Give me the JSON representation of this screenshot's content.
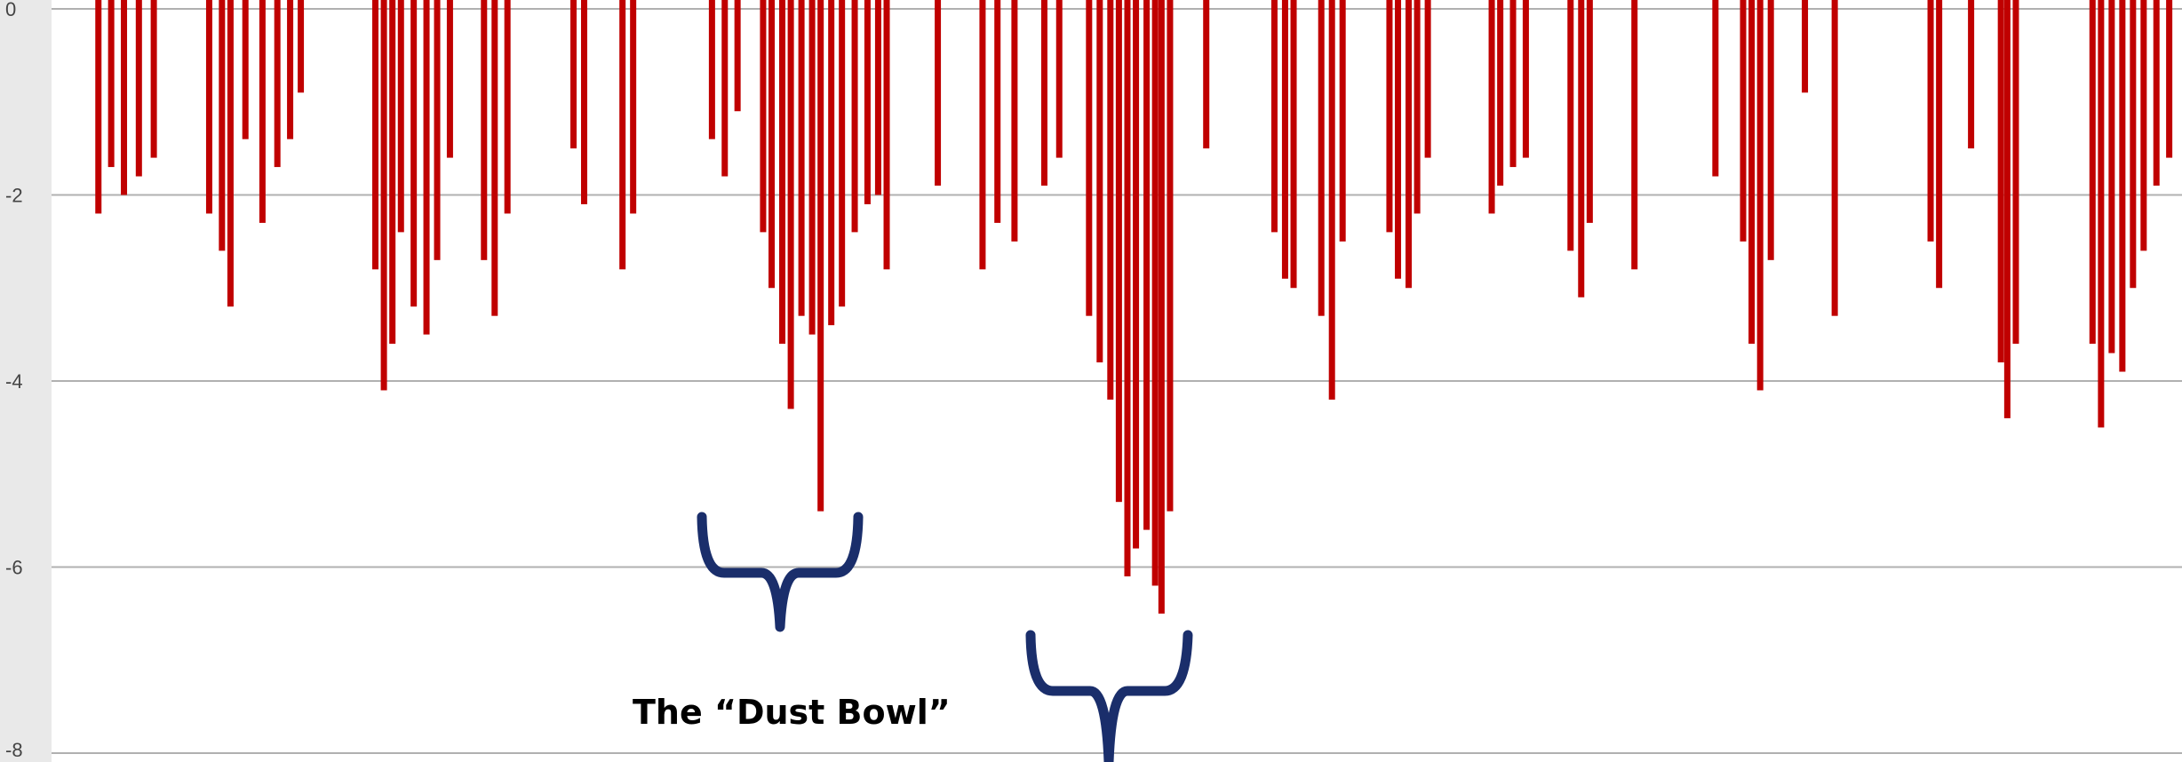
{
  "chart_data": {
    "type": "bar",
    "title": "",
    "xlabel": "",
    "ylabel": "",
    "ylim": [
      -8,
      0
    ],
    "yticks": [
      0,
      -2,
      -4,
      -6,
      -8
    ],
    "ytick_labels": [
      "0",
      "-2",
      "-4",
      "-6",
      "-8"
    ],
    "grid": "horizontal",
    "bar_color": "#c00000",
    "bracket_color": "#1a2e6b",
    "x_span": [
      0,
      1
    ],
    "series": [
      {
        "values": [
          [
            0.022,
            -2.2
          ],
          [
            0.028,
            -1.7
          ],
          [
            0.034,
            -2.0
          ],
          [
            0.041,
            -1.8
          ],
          [
            0.048,
            -1.6
          ],
          [
            0.074,
            -2.2
          ],
          [
            0.08,
            -2.6
          ],
          [
            0.084,
            -3.2
          ],
          [
            0.091,
            -1.4
          ],
          [
            0.099,
            -2.3
          ],
          [
            0.106,
            -1.7
          ],
          [
            0.112,
            -1.4
          ],
          [
            0.117,
            -0.9
          ],
          [
            0.152,
            -2.8
          ],
          [
            0.156,
            -4.1
          ],
          [
            0.16,
            -3.6
          ],
          [
            0.164,
            -2.4
          ],
          [
            0.17,
            -3.2
          ],
          [
            0.176,
            -3.5
          ],
          [
            0.181,
            -2.7
          ],
          [
            0.187,
            -1.6
          ],
          [
            0.203,
            -2.7
          ],
          [
            0.208,
            -3.3
          ],
          [
            0.214,
            -2.2
          ],
          [
            0.245,
            -1.5
          ],
          [
            0.25,
            -2.1
          ],
          [
            0.268,
            -2.8
          ],
          [
            0.273,
            -2.2
          ],
          [
            0.31,
            -1.4
          ],
          [
            0.316,
            -1.8
          ],
          [
            0.322,
            -1.1
          ],
          [
            0.334,
            -2.4
          ],
          [
            0.338,
            -3.0
          ],
          [
            0.343,
            -3.6
          ],
          [
            0.347,
            -4.3
          ],
          [
            0.352,
            -3.3
          ],
          [
            0.357,
            -3.5
          ],
          [
            0.361,
            -5.4
          ],
          [
            0.366,
            -3.4
          ],
          [
            0.371,
            -3.2
          ],
          [
            0.377,
            -2.4
          ],
          [
            0.383,
            -2.1
          ],
          [
            0.388,
            -2.0
          ],
          [
            0.392,
            -2.8
          ],
          [
            0.416,
            -1.9
          ],
          [
            0.437,
            -2.8
          ],
          [
            0.444,
            -2.3
          ],
          [
            0.452,
            -2.5
          ],
          [
            0.466,
            -1.9
          ],
          [
            0.473,
            -1.6
          ],
          [
            0.487,
            -3.3
          ],
          [
            0.492,
            -3.8
          ],
          [
            0.497,
            -4.2
          ],
          [
            0.501,
            -5.3
          ],
          [
            0.505,
            -6.1
          ],
          [
            0.509,
            -5.8
          ],
          [
            0.514,
            -5.6
          ],
          [
            0.518,
            -6.2
          ],
          [
            0.521,
            -6.5
          ],
          [
            0.525,
            -5.4
          ],
          [
            0.542,
            -1.5
          ],
          [
            0.574,
            -2.4
          ],
          [
            0.579,
            -2.9
          ],
          [
            0.583,
            -3.0
          ],
          [
            0.596,
            -3.3
          ],
          [
            0.601,
            -4.2
          ],
          [
            0.606,
            -2.5
          ],
          [
            0.628,
            -2.4
          ],
          [
            0.632,
            -2.9
          ],
          [
            0.637,
            -3.0
          ],
          [
            0.641,
            -2.2
          ],
          [
            0.646,
            -1.6
          ],
          [
            0.676,
            -2.2
          ],
          [
            0.68,
            -1.9
          ],
          [
            0.686,
            -1.7
          ],
          [
            0.692,
            -1.6
          ],
          [
            0.713,
            -2.6
          ],
          [
            0.718,
            -3.1
          ],
          [
            0.722,
            -2.3
          ],
          [
            0.743,
            -2.8
          ],
          [
            0.781,
            -1.8
          ],
          [
            0.794,
            -2.5
          ],
          [
            0.798,
            -3.6
          ],
          [
            0.802,
            -4.1
          ],
          [
            0.807,
            -2.7
          ],
          [
            0.823,
            -0.9
          ],
          [
            0.837,
            -3.3
          ],
          [
            0.882,
            -2.5
          ],
          [
            0.886,
            -3.0
          ],
          [
            0.901,
            -1.5
          ],
          [
            0.915,
            -3.8
          ],
          [
            0.918,
            -4.4
          ],
          [
            0.922,
            -3.6
          ],
          [
            0.958,
            -3.6
          ],
          [
            0.962,
            -4.5
          ],
          [
            0.967,
            -3.7
          ],
          [
            0.972,
            -3.9
          ],
          [
            0.977,
            -3.0
          ],
          [
            0.982,
            -2.6
          ],
          [
            0.988,
            -1.9
          ],
          [
            0.994,
            -1.6
          ]
        ]
      }
    ],
    "annotations": [
      {
        "text": "The “Dust Bowl”"
      }
    ]
  }
}
